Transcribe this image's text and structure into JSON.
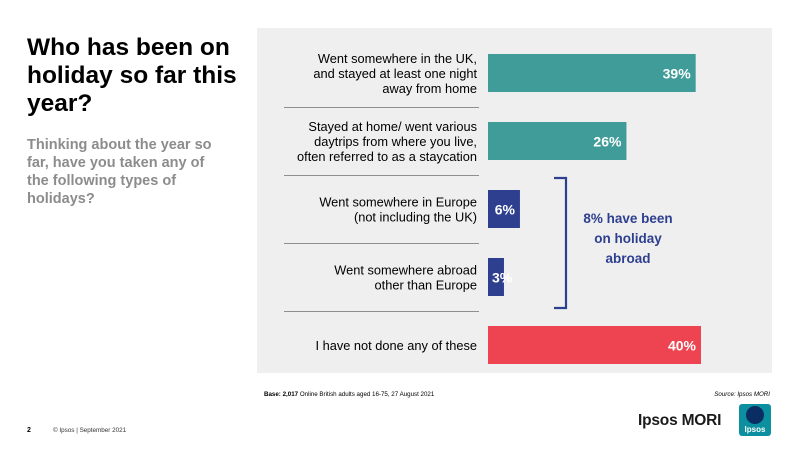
{
  "header": {
    "title": "Who has been on holiday so far this year?",
    "subtitle": "Thinking about the year so far, have you taken any of the following types of holidays?"
  },
  "chart_data": {
    "type": "bar",
    "orientation": "horizontal",
    "categories": [
      [
        "Went somewhere in the UK,",
        "and stayed at least one night",
        "away from home"
      ],
      [
        "Stayed at home/ went various",
        "daytrips from where you live,",
        "often referred to as a staycation"
      ],
      [
        "Went somewhere in Europe",
        "(not including the UK)"
      ],
      [
        "Went somewhere abroad",
        "other than Europe"
      ],
      [
        "I have not done any of these"
      ]
    ],
    "values": [
      39,
      26,
      6,
      3,
      40
    ],
    "value_labels": [
      "39%",
      "26%",
      "6%",
      "3%",
      "40%"
    ],
    "colors": [
      "#3f9c98",
      "#3f9c98",
      "#2e3f8f",
      "#2e3f8f",
      "#ee4351"
    ],
    "xlim": [
      0,
      40
    ],
    "annotation": {
      "lines": [
        "8% have been",
        "on holiday",
        "abroad"
      ],
      "color": "#2e3f8f"
    }
  },
  "footer": {
    "base_label": "Base:",
    "base_count": "2,017",
    "base_text": "Online British adults aged 16-75,  27 August 2021",
    "source": "Source:  Ipsos MORI",
    "page_number": "2",
    "copyright": "© Ipsos | September 2021",
    "brand": "Ipsos MORI",
    "logo_text": "Ipsos"
  }
}
